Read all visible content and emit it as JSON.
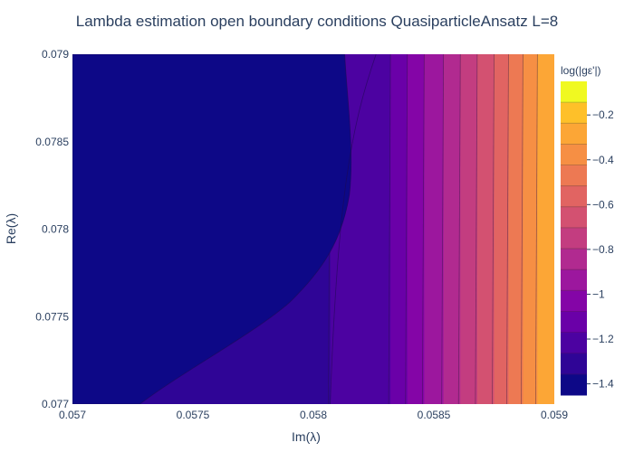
{
  "chart_data": {
    "type": "contour",
    "title": "Lambda estimation open boundary conditions QuasiparticleAnsatz L=8",
    "xlabel": "Im(λ)",
    "ylabel": "Re(λ)",
    "xlim": [
      0.057,
      0.059
    ],
    "ylim": [
      0.077,
      0.079
    ],
    "x_ticks": [
      {
        "value": 0.057,
        "label": "0.057"
      },
      {
        "value": 0.0575,
        "label": "0.0575"
      },
      {
        "value": 0.058,
        "label": "0.058"
      },
      {
        "value": 0.0585,
        "label": "0.0585"
      },
      {
        "value": 0.059,
        "label": "0.059"
      }
    ],
    "y_ticks": [
      {
        "value": 0.077,
        "label": "0.077"
      },
      {
        "value": 0.0775,
        "label": "0.0775"
      },
      {
        "value": 0.078,
        "label": "0.078"
      },
      {
        "value": 0.0785,
        "label": "0.0785"
      },
      {
        "value": 0.079,
        "label": "0.079"
      }
    ],
    "colorbar": {
      "title": "log(|gε'|)",
      "range": [
        -1.45,
        -0.05
      ],
      "ticks": [
        {
          "value": -0.2,
          "label": "−0.2"
        },
        {
          "value": -0.4,
          "label": "−0.4"
        },
        {
          "value": -0.6,
          "label": "−0.6"
        },
        {
          "value": -0.8,
          "label": "−0.8"
        },
        {
          "value": -1.0,
          "label": "−1"
        },
        {
          "value": -1.2,
          "label": "−1.2"
        },
        {
          "value": -1.4,
          "label": "−1.4"
        }
      ],
      "colors": [
        "#0d0887",
        "#2f0596",
        "#4c02a1",
        "#6a00a8",
        "#8405a7",
        "#9c179e",
        "#b12a90",
        "#c33d80",
        "#d35171",
        "#e16462",
        "#ed7953",
        "#f68f44",
        "#fca636",
        "#fec029",
        "#f0f921"
      ]
    },
    "contour_boundaries_x_at_top": [
      0.05826,
      0.05813,
      0.05807,
      0.05832,
      0.05839,
      0.05846,
      0.05854,
      0.05861,
      0.05868,
      0.05875,
      0.05881,
      0.05887,
      0.05893
    ],
    "grid": false
  }
}
